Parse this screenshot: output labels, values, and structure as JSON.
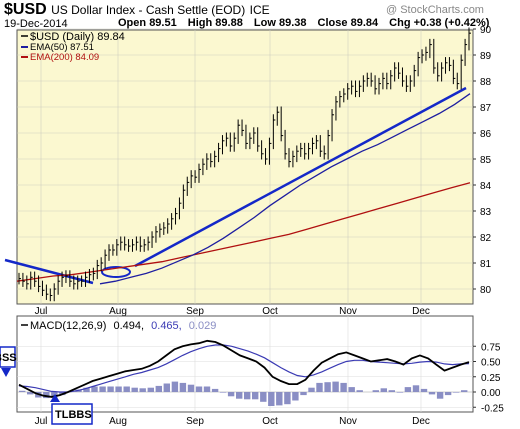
{
  "header": {
    "symbol": "$USD",
    "name": "US Dollar Index - Cash Settle (EOD)",
    "exchange": "ICE",
    "date": "19-Dec-2014",
    "watermark": "@ StockCharts.com",
    "quote": {
      "open_label": "Open",
      "open": "89.51",
      "high_label": "High",
      "high": "89.88",
      "low_label": "Low",
      "low": "89.38",
      "close_label": "Close",
      "close": "89.84",
      "chg_label": "Chg",
      "chg": "+0.38 (+0.42%)"
    }
  },
  "legend": {
    "price": "$USD (Daily) 89.84",
    "ema50": "EMA(50) 87.51",
    "ema200": "EMA(200) 84.09"
  },
  "macd_label": {
    "prefix": "MACD(12,26,9)",
    "macd": "0.494,",
    "signal": "0.465,",
    "hist": "0.029"
  },
  "annotations": {
    "left_box": "BSS",
    "bottom_box": "TLBBS"
  },
  "colors": {
    "plot_bg": "#fbf8d0",
    "price": "#000000",
    "ema50": "#1e1ea0",
    "ema200": "#b01010",
    "trendline": "#1428c8",
    "macd_line": "#000000",
    "signal_line": "#3b3bb4",
    "histogram": "#8a8ec4"
  },
  "chart_data": [
    {
      "type": "line",
      "title": "$USD US Dollar Index - Cash Settle (EOD) ICE",
      "x_ticks": [
        "Jul",
        "Aug",
        "Sep",
        "Oct",
        "Nov",
        "Dec"
      ],
      "y_ticks": [
        80,
        81,
        82,
        83,
        84,
        85,
        86,
        87,
        88,
        89,
        90
      ],
      "ylim": [
        79.5,
        90.2
      ],
      "grid": true,
      "series": [
        {
          "name": "$USD (Daily)",
          "key": "price",
          "values": [
            80.4,
            80.3,
            80.2,
            80.45,
            80.3,
            80.1,
            79.95,
            79.8,
            79.75,
            80.0,
            80.3,
            80.45,
            80.5,
            80.3,
            80.2,
            80.3,
            80.3,
            80.45,
            80.55,
            80.6,
            80.9,
            81.0,
            81.3,
            81.5,
            81.5,
            81.7,
            81.8,
            81.7,
            81.65,
            81.7,
            81.8,
            81.65,
            81.7,
            81.8,
            82.0,
            82.2,
            82.3,
            82.35,
            82.5,
            82.7,
            82.9,
            83.3,
            83.8,
            84.1,
            84.35,
            84.3,
            84.6,
            84.8,
            85.0,
            84.9,
            85.1,
            85.4,
            85.7,
            85.8,
            85.5,
            85.8,
            86.3,
            86.1,
            85.6,
            85.8,
            86.0,
            85.5,
            85.2,
            85.0,
            85.6,
            86.5,
            86.8,
            85.9,
            85.2,
            84.9,
            85.1,
            85.3,
            85.4,
            85.2,
            85.4,
            85.6,
            85.7,
            85.3,
            85.2,
            85.9,
            86.7,
            87.2,
            87.4,
            87.5,
            87.7,
            87.8,
            87.6,
            87.8,
            88.0,
            88.1,
            88.0,
            87.7,
            87.9,
            88.1,
            87.9,
            88.2,
            88.5,
            88.3,
            88.0,
            87.8,
            88.0,
            88.4,
            88.9,
            89.0,
            89.1,
            89.4,
            88.5,
            88.2,
            88.5,
            88.7,
            88.6,
            88.1,
            87.9,
            88.8,
            89.4,
            89.84
          ]
        },
        {
          "name": "EMA(50)",
          "key": "ema50",
          "values": [
            80.2,
            80.3,
            80.45,
            80.6,
            80.8,
            81.05,
            81.3,
            81.6,
            81.95,
            82.35,
            82.75,
            83.2,
            83.6,
            84.0,
            84.35,
            84.7,
            85.0,
            85.3,
            85.55,
            85.85,
            86.15,
            86.45,
            86.75,
            87.1,
            87.51
          ]
        },
        {
          "name": "EMA(200)",
          "key": "ema200",
          "values": [
            80.3,
            80.4,
            80.5,
            80.55,
            80.65,
            80.75,
            80.85,
            80.95,
            81.05,
            81.2,
            81.35,
            81.5,
            81.65,
            81.8,
            81.95,
            82.1,
            82.3,
            82.5,
            82.7,
            82.9,
            83.1,
            83.3,
            83.5,
            83.7,
            83.9,
            84.09
          ]
        }
      ],
      "trendlines": [
        {
          "from": [
            "Jun",
            81.0
          ],
          "to": [
            "Aug",
            80.2
          ]
        },
        {
          "from": [
            "Aug",
            80.9
          ],
          "to": [
            "Dec",
            87.8
          ]
        }
      ],
      "annotations": [
        "ellipse near 80.5 in early Aug"
      ]
    },
    {
      "type": "line",
      "title": "MACD(12,26,9) 0.494, 0.465, 0.029",
      "x_ticks": [
        "Jul",
        "Aug",
        "Sep",
        "Oct",
        "Nov",
        "Dec"
      ],
      "y_ticks": [
        -0.25,
        0.0,
        0.25,
        0.5,
        0.75
      ],
      "ylim": [
        -0.3,
        0.85
      ],
      "series": [
        {
          "name": "MACD",
          "key": "macd",
          "values": [
            0.12,
            0.05,
            -0.02,
            -0.06,
            -0.08,
            -0.05,
            0.0,
            0.06,
            0.12,
            0.18,
            0.22,
            0.26,
            0.3,
            0.34,
            0.36,
            0.38,
            0.43,
            0.5,
            0.6,
            0.7,
            0.75,
            0.78,
            0.8,
            0.84,
            0.82,
            0.76,
            0.68,
            0.6,
            0.55,
            0.5,
            0.4,
            0.25,
            0.18,
            0.13,
            0.13,
            0.2,
            0.35,
            0.48,
            0.55,
            0.62,
            0.65,
            0.6,
            0.55,
            0.5,
            0.52,
            0.54,
            0.5,
            0.45,
            0.55,
            0.6,
            0.55,
            0.45,
            0.35,
            0.4,
            0.45,
            0.49
          ]
        },
        {
          "name": "Signal",
          "key": "signal",
          "values": [
            0.1,
            0.09,
            0.07,
            0.04,
            0.01,
            0.0,
            0.0,
            0.02,
            0.05,
            0.09,
            0.13,
            0.17,
            0.21,
            0.25,
            0.29,
            0.32,
            0.36,
            0.4,
            0.46,
            0.53,
            0.6,
            0.66,
            0.71,
            0.75,
            0.77,
            0.77,
            0.75,
            0.71,
            0.67,
            0.62,
            0.56,
            0.48,
            0.4,
            0.33,
            0.27,
            0.25,
            0.28,
            0.33,
            0.39,
            0.45,
            0.5,
            0.52,
            0.52,
            0.5,
            0.49,
            0.48,
            0.47,
            0.46,
            0.47,
            0.49,
            0.5,
            0.49,
            0.46,
            0.45,
            0.46,
            0.465
          ]
        },
        {
          "name": "Histogram",
          "key": "hist",
          "values": [
            0.02,
            -0.04,
            -0.09,
            -0.1,
            -0.09,
            -0.05,
            0.0,
            0.04,
            0.07,
            0.09,
            0.09,
            0.09,
            0.09,
            0.09,
            0.07,
            0.06,
            0.07,
            0.1,
            0.14,
            0.17,
            0.15,
            0.12,
            0.09,
            0.09,
            0.05,
            -0.01,
            -0.07,
            -0.11,
            -0.12,
            -0.12,
            -0.16,
            -0.23,
            -0.22,
            -0.2,
            -0.14,
            -0.05,
            0.07,
            0.15,
            0.16,
            0.17,
            0.15,
            0.08,
            0.03,
            0.0,
            0.03,
            0.06,
            0.03,
            -0.01,
            0.08,
            0.11,
            0.05,
            -0.04,
            -0.11,
            -0.05,
            -0.01,
            0.029
          ]
        }
      ]
    }
  ]
}
